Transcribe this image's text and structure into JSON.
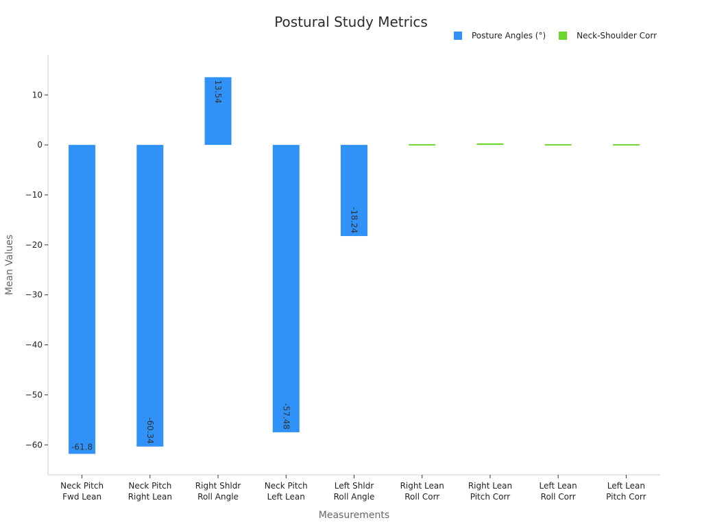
{
  "chart_data": {
    "type": "bar",
    "title": "Postural Study Metrics",
    "xlabel": "Measurements",
    "ylabel": "Mean Values",
    "ylim": [
      -66,
      18
    ],
    "yticks": [
      10,
      0,
      -10,
      -20,
      -30,
      -40,
      -50,
      -60
    ],
    "categories": [
      [
        "Neck Pitch",
        "Fwd Lean"
      ],
      [
        "Neck Pitch",
        "Right Lean"
      ],
      [
        "Right Shldr",
        "Roll Angle"
      ],
      [
        "Neck Pitch",
        "Left Lean"
      ],
      [
        "Left Shldr",
        "Roll Angle"
      ],
      [
        "Right Lean",
        "Roll Corr"
      ],
      [
        "Right Lean",
        "Pitch Corr"
      ],
      [
        "Left Lean",
        "Roll Corr"
      ],
      [
        "Left Lean",
        "Pitch Corr"
      ]
    ],
    "series": [
      {
        "name": "Posture Angles (°)",
        "color": "#3091f7",
        "values": [
          -61.8,
          -60.34,
          13.54,
          -57.48,
          -18.24,
          null,
          null,
          null,
          null
        ],
        "labels": [
          "-61.8",
          "-60.34",
          "13.54",
          "-57.48",
          "-18.24",
          null,
          null,
          null,
          null
        ]
      },
      {
        "name": "Neck-Shoulder Corr",
        "color": "#6cd62e",
        "values": [
          null,
          null,
          null,
          null,
          null,
          -0.2,
          0.3,
          0.01,
          -0.1
        ]
      }
    ],
    "legend_position": "top-right",
    "grid": false
  }
}
